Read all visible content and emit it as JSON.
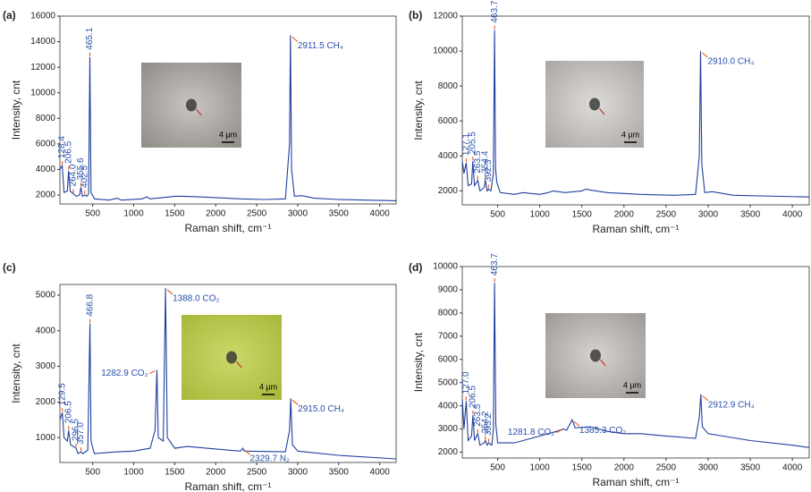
{
  "chart_data": [
    {
      "type": "line",
      "panel_label": "(a)",
      "xlabel": "Raman shift, cm⁻¹",
      "ylabel": "Intensity, cnt",
      "color": "#1f3f9f",
      "inset_label": "4 µm",
      "xlim": [
        100,
        4200
      ],
      "xticks": [
        500,
        1000,
        1500,
        2000,
        2500,
        3000,
        3500,
        4000
      ],
      "ylim": [
        1300,
        16000
      ],
      "yticks": [
        2000,
        4000,
        6000,
        8000,
        10000,
        12000,
        14000,
        16000
      ],
      "x": [
        100,
        128,
        150,
        190,
        206,
        225,
        264,
        300,
        340,
        356,
        375,
        402,
        430,
        450,
        465,
        480,
        520,
        700,
        800,
        850,
        1100,
        1160,
        1200,
        1350,
        1500,
        1600,
        1800,
        2000,
        2300,
        2600,
        2850,
        2900,
        2911.5,
        2925,
        2960,
        3050,
        3200,
        3500,
        4200
      ],
      "values": [
        4000,
        4300,
        2200,
        2300,
        3900,
        2300,
        2100,
        1900,
        2000,
        2600,
        1900,
        2000,
        1900,
        2100,
        12800,
        2200,
        1700,
        1600,
        1750,
        1600,
        1700,
        1850,
        1700,
        1800,
        1900,
        1900,
        1850,
        1800,
        1700,
        1650,
        1700,
        6000,
        14500,
        4000,
        1900,
        1950,
        1750,
        1650,
        1550
      ],
      "annotations": [
        {
          "text": "128.4",
          "x": 128.4,
          "y": 4300
        },
        {
          "text": "206.5",
          "x": 206.5,
          "y": 3900
        },
        {
          "text": "264.0",
          "x": 264.0,
          "y": 2100
        },
        {
          "text": "355.6",
          "x": 355.6,
          "y": 2600
        },
        {
          "text": "402.5",
          "x": 402.5,
          "y": 2000
        },
        {
          "text": "465.1",
          "x": 465.1,
          "y": 12800
        },
        {
          "text": "2911.5 CH₄",
          "x": 2911.5,
          "y": 14500
        }
      ]
    },
    {
      "type": "line",
      "panel_label": "(b)",
      "xlabel": "Raman shift, cm⁻¹",
      "ylabel": "Intensity, cnt",
      "color": "#1f3f9f",
      "inset_label": "4 µm",
      "xlim": [
        80,
        4200
      ],
      "xticks": [
        500,
        1000,
        1500,
        2000,
        2500,
        3000,
        3500,
        4000
      ],
      "ylim": [
        1200,
        12000
      ],
      "yticks": [
        2000,
        4000,
        6000,
        8000,
        10000,
        12000
      ],
      "x": [
        80,
        100,
        127,
        150,
        190,
        205.5,
        225,
        263.5,
        290,
        340,
        354.4,
        375,
        392.3,
        420,
        450,
        463.7,
        475,
        490,
        530,
        700,
        800,
        1000,
        1100,
        1160,
        1300,
        1500,
        1550,
        1600,
        1800,
        2200,
        2600,
        2850,
        2895,
        2910,
        2925,
        2960,
        3050,
        3300,
        4200
      ],
      "values": [
        3700,
        3000,
        3600,
        2300,
        2400,
        3700,
        2300,
        2600,
        2000,
        2200,
        2600,
        2000,
        2100,
        2000,
        3000,
        11200,
        3300,
        2500,
        1900,
        1800,
        1900,
        1800,
        1900,
        2000,
        1900,
        2000,
        2100,
        2050,
        1900,
        1800,
        1750,
        1800,
        4000,
        10000,
        3500,
        1900,
        1950,
        1750,
        1650
      ],
      "annotations": [
        {
          "text": "127.1",
          "x": 127.1,
          "y": 3600
        },
        {
          "text": "205.5",
          "x": 205.5,
          "y": 3700
        },
        {
          "text": "263.5",
          "x": 263.5,
          "y": 2600
        },
        {
          "text": "354.4",
          "x": 354.4,
          "y": 2600
        },
        {
          "text": "392.3",
          "x": 392.3,
          "y": 2100
        },
        {
          "text": "463.7",
          "x": 463.7,
          "y": 11200
        },
        {
          "text": "2910.0 CH₄",
          "x": 2910.0,
          "y": 10000
        }
      ]
    },
    {
      "type": "line",
      "panel_label": "(c)",
      "xlabel": "Raman shift, cm⁻¹",
      "ylabel": "Intensity, cnt",
      "color": "#1f3f9f",
      "inset_label": "4 µm",
      "xlim": [
        100,
        4200
      ],
      "xticks": [
        500,
        1000,
        1500,
        2000,
        2500,
        3000,
        3500,
        4000
      ],
      "ylim": [
        300,
        5300
      ],
      "yticks": [
        1000,
        2000,
        3000,
        4000,
        5000
      ],
      "x": [
        100,
        129.5,
        150,
        190,
        206.5,
        230,
        296.5,
        320,
        357,
        380,
        440,
        466.8,
        480,
        520,
        800,
        1000,
        1200,
        1260,
        1282.9,
        1300,
        1360,
        1388,
        1410,
        1500,
        1650,
        2000,
        2300,
        2329.7,
        2350,
        2850,
        2900,
        2915,
        2935,
        3000,
        3500,
        4200
      ],
      "values": [
        1500,
        1700,
        1000,
        900,
        1200,
        800,
        700,
        550,
        600,
        550,
        650,
        4200,
        900,
        550,
        600,
        620,
        700,
        1200,
        2900,
        1000,
        900,
        5200,
        1000,
        700,
        750,
        680,
        620,
        700,
        620,
        600,
        1200,
        2100,
        800,
        620,
        500,
        400
      ],
      "annotations": [
        {
          "text": "129.5",
          "x": 129.5,
          "y": 1700
        },
        {
          "text": "206.5",
          "x": 206.5,
          "y": 1200
        },
        {
          "text": "296.5",
          "x": 296.5,
          "y": 700
        },
        {
          "text": "357.0",
          "x": 357.0,
          "y": 600
        },
        {
          "text": "466.8",
          "x": 466.8,
          "y": 4200
        },
        {
          "text": "1282.9 CO₂",
          "x": 1282.9,
          "y": 2900
        },
        {
          "text": "1388.0 CO₂",
          "x": 1388.0,
          "y": 5200
        },
        {
          "text": "2329.7 N₂",
          "x": 2329.7,
          "y": 700
        },
        {
          "text": "2915.0 CH₄",
          "x": 2915.0,
          "y": 2100
        }
      ]
    },
    {
      "type": "line",
      "panel_label": "(d)",
      "xlabel": "Raman shift, cm⁻¹",
      "ylabel": "Intensity, cnt",
      "color": "#1f3f9f",
      "inset_label": "4 µm",
      "xlim": [
        80,
        4200
      ],
      "xticks": [
        500,
        1000,
        1500,
        2000,
        2500,
        3000,
        3500,
        4000
      ],
      "ylim": [
        1750,
        10000
      ],
      "yticks": [
        2000,
        3000,
        4000,
        5000,
        6000,
        7000,
        8000,
        9000,
        10000
      ],
      "x": [
        80,
        100,
        127,
        150,
        190,
        206.5,
        225,
        263.5,
        290,
        340,
        354.2,
        375,
        393.2,
        430,
        450,
        463.7,
        478,
        500,
        700,
        900,
        1100,
        1200,
        1281.8,
        1320,
        1385.3,
        1420,
        1600,
        1800,
        2000,
        2200,
        2500,
        2850,
        2895,
        2912.9,
        2930,
        3000,
        3500,
        4000,
        4200
      ],
      "values": [
        4300,
        3000,
        4200,
        2500,
        2700,
        3600,
        2500,
        2800,
        2300,
        2400,
        2500,
        2300,
        2400,
        2300,
        3000,
        9300,
        3200,
        2400,
        2400,
        2600,
        2800,
        2900,
        3000,
        2950,
        3400,
        3050,
        3100,
        2900,
        2800,
        2800,
        2700,
        2600,
        3500,
        4500,
        3100,
        2800,
        2500,
        2300,
        2200
      ],
      "annotations": [
        {
          "text": "127.0",
          "x": 127.0,
          "y": 4200
        },
        {
          "text": "206.5",
          "x": 206.5,
          "y": 3600
        },
        {
          "text": "263.5",
          "x": 263.5,
          "y": 2800
        },
        {
          "text": "354.2",
          "x": 354.2,
          "y": 2500
        },
        {
          "text": "393.2",
          "x": 393.2,
          "y": 2400
        },
        {
          "text": "463.7",
          "x": 463.7,
          "y": 9300
        },
        {
          "text": "1281.8 CO₂",
          "x": 1281.8,
          "y": 3000
        },
        {
          "text": "1385.3 CO₂",
          "x": 1385.3,
          "y": 3400
        },
        {
          "text": "2912.9 CH₄",
          "x": 2912.9,
          "y": 4500
        }
      ]
    }
  ]
}
